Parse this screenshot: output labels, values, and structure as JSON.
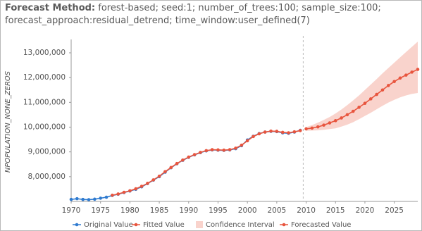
{
  "chart_data": {
    "type": "line",
    "title_label": "Forecast Method:",
    "title": "forest-based; seed:1; number_of_trees:100; sample_size:100;\nforecast_approach:residual_detrend; time_window:user_defined(7)",
    "y_label": "NPOPULATION_NONE_ZEROS",
    "xlim": [
      1970,
      2029
    ],
    "xticks": [
      1970,
      1975,
      1980,
      1985,
      1990,
      1995,
      2000,
      2005,
      2010,
      2015,
      2020,
      2025
    ],
    "ylim": [
      7000000,
      13540000
    ],
    "yticks": [
      {
        "value": 8000000,
        "label": "8,000,000"
      },
      {
        "value": 9000000,
        "label": "9,000,000"
      },
      {
        "value": 10000000,
        "label": "10,000,000"
      },
      {
        "value": 11000000,
        "label": "11,000,000"
      },
      {
        "value": 12000000,
        "label": "12,000,000"
      },
      {
        "value": 13000000,
        "label": "13,000,000"
      }
    ],
    "series": [
      {
        "name": "Original Value",
        "color": "#2f7bd0",
        "kind": "line",
        "x": [
          1970,
          1971,
          1972,
          1973,
          1974,
          1975,
          1976,
          1977,
          1978,
          1979,
          1980,
          1981,
          1982,
          1983,
          1984,
          1985,
          1986,
          1987,
          1988,
          1989,
          1990,
          1991,
          1992,
          1993,
          1994,
          1995,
          1996,
          1997,
          1998,
          1999,
          2000,
          2001,
          2002,
          2003,
          2004,
          2005,
          2006,
          2007,
          2008,
          2009
        ],
        "values": [
          7080000,
          7110000,
          7080000,
          7070000,
          7090000,
          7130000,
          7170000,
          7240000,
          7290000,
          7360000,
          7420000,
          7490000,
          7590000,
          7720000,
          7860000,
          8000000,
          8180000,
          8360000,
          8520000,
          8660000,
          8780000,
          8880000,
          8970000,
          9040000,
          9080000,
          9070000,
          9060000,
          9080000,
          9130000,
          9250000,
          9480000,
          9630000,
          9740000,
          9800000,
          9830000,
          9820000,
          9770000,
          9750000,
          9800000,
          9870000
        ]
      },
      {
        "name": "Fitted Value",
        "color": "#e8553e",
        "kind": "line",
        "x": [
          1977,
          1978,
          1979,
          1980,
          1981,
          1982,
          1983,
          1984,
          1985,
          1986,
          1987,
          1988,
          1989,
          1990,
          1991,
          1992,
          1993,
          1994,
          1995,
          1996,
          1997,
          1998,
          1999,
          2000,
          2001,
          2002,
          2003,
          2004,
          2005,
          2006,
          2007,
          2008,
          2009
        ],
        "values": [
          7250000,
          7300000,
          7370000,
          7430000,
          7510000,
          7610000,
          7730000,
          7870000,
          8020000,
          8200000,
          8370000,
          8530000,
          8670000,
          8790000,
          8890000,
          8980000,
          9050000,
          9090000,
          9080000,
          9070000,
          9090000,
          9150000,
          9270000,
          9450000,
          9620000,
          9730000,
          9800000,
          9840000,
          9830000,
          9790000,
          9770000,
          9810000,
          9860000
        ]
      },
      {
        "name": "Confidence Interval",
        "color": "#f9d3cc",
        "kind": "band",
        "x": [
          2010,
          2011,
          2012,
          2013,
          2014,
          2015,
          2016,
          2017,
          2018,
          2019,
          2020,
          2021,
          2022,
          2023,
          2024,
          2025,
          2026,
          2027,
          2028,
          2029
        ],
        "lower": [
          9850000,
          9860000,
          9870000,
          9890000,
          9920000,
          9950000,
          10020000,
          10100000,
          10200000,
          10320000,
          10450000,
          10580000,
          10720000,
          10860000,
          10990000,
          11100000,
          11200000,
          11280000,
          11340000,
          11380000
        ],
        "upper": [
          10000000,
          10080000,
          10180000,
          10290000,
          10410000,
          10550000,
          10710000,
          10890000,
          11080000,
          11280000,
          11500000,
          11720000,
          11940000,
          12170000,
          12390000,
          12600000,
          12820000,
          13030000,
          13240000,
          13450000
        ]
      },
      {
        "name": "Forecasted Value",
        "color": "#e8553e",
        "kind": "line",
        "x": [
          2010,
          2011,
          2012,
          2013,
          2014,
          2015,
          2016,
          2017,
          2018,
          2019,
          2020,
          2021,
          2022,
          2023,
          2024,
          2025,
          2026,
          2027,
          2028,
          2029
        ],
        "values": [
          9930000,
          9960000,
          10010000,
          10080000,
          10170000,
          10260000,
          10370000,
          10500000,
          10640000,
          10800000,
          10960000,
          11140000,
          11320000,
          11500000,
          11680000,
          11840000,
          11980000,
          12100000,
          12220000,
          12330000
        ]
      }
    ]
  }
}
